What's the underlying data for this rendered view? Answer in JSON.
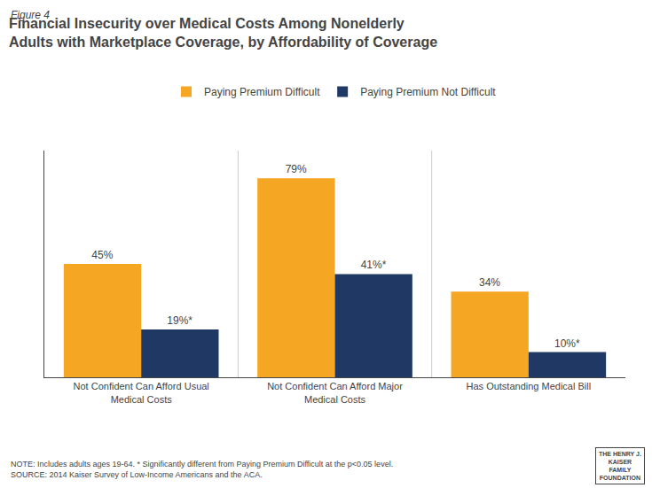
{
  "chart_data": {
    "type": "bar",
    "title": "Financial Insecurity over Medical Costs Among Nonelderly\nAdults with Marketplace Coverage, by Affordability of Coverage",
    "annotations": [
      "Figure 4",
      "NOTE: Includes adults ages 19-64. * Significantly different from Paying Premium Difficult at the p<0.05 level.\nSOURCE: 2014 Kaiser Survey of Low-Income Americans and the ACA.",
      "THE HENRY J.\nKAISER\nFAMILY\nFOUNDATION"
    ],
    "categories": [
      "Not Confident Can Afford Usual\nMedical Costs",
      "Not Confident Can Afford Major\nMedical Costs",
      "Has Outstanding Medical Bill"
    ],
    "series": [
      {
        "name": "Paying Premium Difficult",
        "color": "#F5A623",
        "values": [
          45,
          79,
          34
        ],
        "value_labels": [
          "45%",
          "79%",
          "34%"
        ]
      },
      {
        "name": "Paying Premium Not Difficult",
        "color": "#1F3864",
        "values": [
          19,
          41,
          10
        ],
        "value_labels": [
          "19%*",
          "41%*",
          "10%*"
        ]
      }
    ],
    "ylim": [
      0,
      90
    ],
    "grid": false,
    "legend": "top",
    "data_labels": true,
    "tick_labels": "x"
  }
}
